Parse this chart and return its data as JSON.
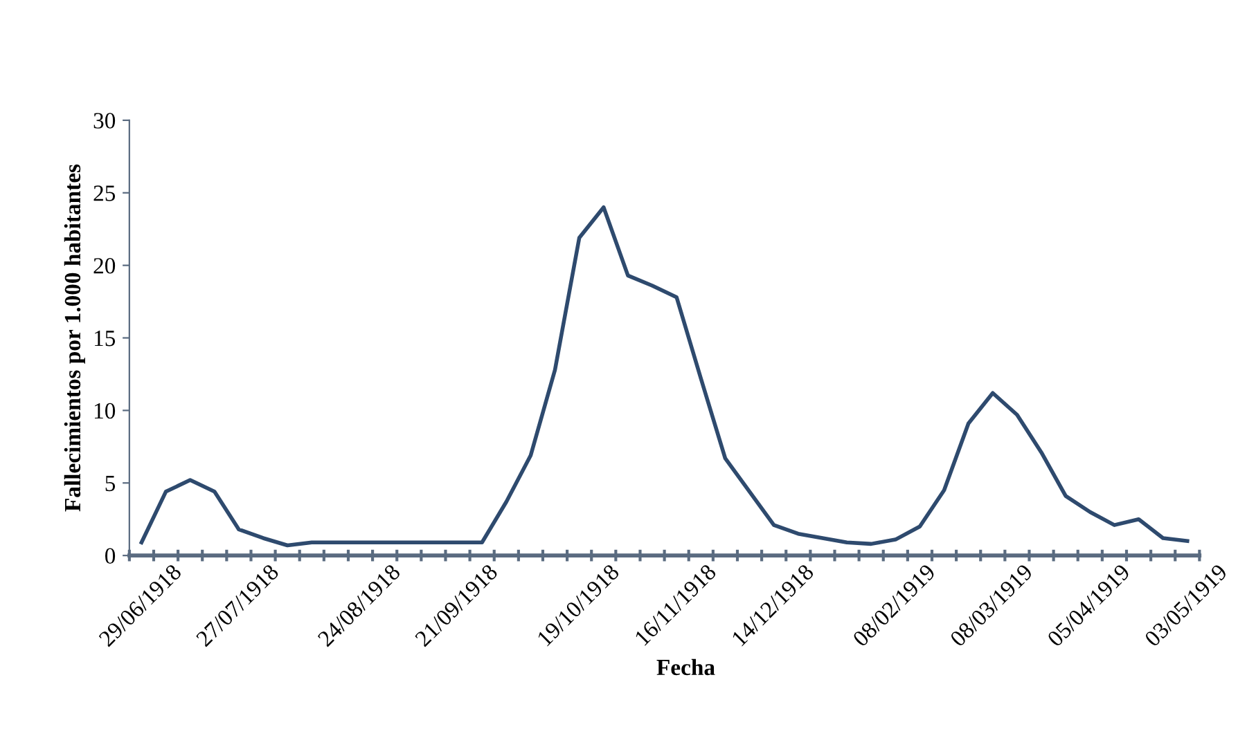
{
  "chart_data": {
    "type": "line",
    "xlabel": "Fecha",
    "ylabel": "Fallecimientos por 1.000 habitantes",
    "categories": [
      "29/06/1918",
      null,
      null,
      null,
      "27/07/1918",
      null,
      null,
      null,
      null,
      "24/08/1918",
      null,
      null,
      null,
      "21/09/1918",
      null,
      null,
      null,
      null,
      "19/10/1918",
      null,
      null,
      null,
      "16/11/1918",
      null,
      null,
      null,
      "14/12/1918",
      null,
      null,
      null,
      null,
      "08/02/1919",
      null,
      null,
      null,
      "08/03/1919",
      null,
      null,
      null,
      "05/04/1919",
      null,
      null,
      null,
      "03/05/1919"
    ],
    "series": [
      {
        "color": "#2e4a6e",
        "values": [
          0.9,
          4.4,
          5.2,
          4.4,
          1.8,
          1.2,
          0.7,
          0.9,
          0.9,
          0.9,
          0.9,
          0.9,
          0.9,
          0.9,
          0.9,
          3.7,
          6.9,
          12.8,
          21.9,
          24.0,
          19.3,
          18.6,
          17.8,
          12.2,
          6.7,
          4.4,
          2.1,
          1.5,
          1.2,
          0.9,
          0.8,
          1.1,
          2.0,
          4.5,
          9.1,
          11.2,
          9.7,
          7.1,
          4.1,
          3.0,
          2.1,
          2.5,
          1.2,
          1.0
        ]
      }
    ],
    "ylim": [
      0,
      30
    ],
    "yticks": [
      0,
      5,
      10,
      15,
      20,
      25,
      30
    ],
    "grid": false,
    "marker": "none",
    "line_style": "solid"
  }
}
